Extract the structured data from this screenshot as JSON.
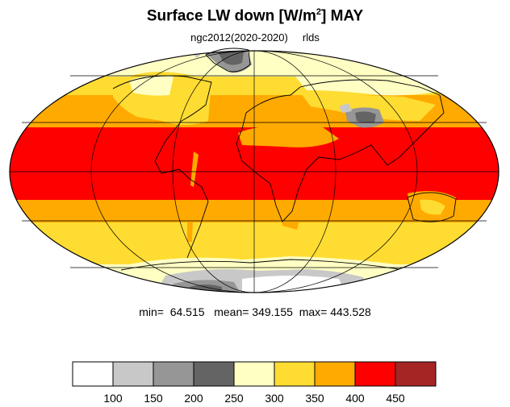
{
  "title": {
    "main": "Surface LW down [W/m",
    "superscript": "2",
    "suffix": "]  MAY"
  },
  "subtitle": {
    "case": "ngc2012(2020-2020)",
    "variable": "rlds"
  },
  "stats": {
    "min_label": "min=",
    "min": "64.515",
    "mean_label": "mean=",
    "mean": "349.155",
    "max_label": "max=",
    "max": "443.528"
  },
  "colorbar": {
    "colors": [
      "#ffffff",
      "#c8c8c8",
      "#969696",
      "#646464",
      "#ffffc4",
      "#ffdc32",
      "#ffaa00",
      "#ff0000",
      "#a52525"
    ],
    "labels": [
      "100",
      "150",
      "200",
      "250",
      "300",
      "350",
      "400",
      "450"
    ]
  },
  "map": {
    "projection": "Mollweide",
    "ocean_color": "#ffaa00",
    "outline_color": "#000000"
  }
}
